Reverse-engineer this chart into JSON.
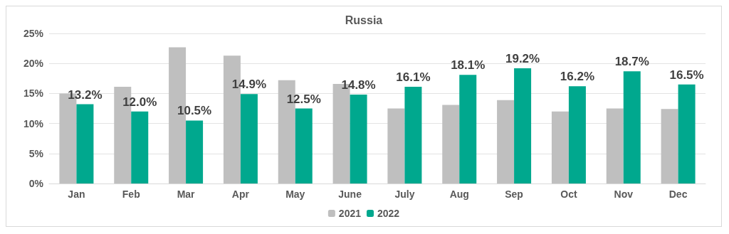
{
  "chart_data": {
    "type": "bar",
    "title": "Russia",
    "categories": [
      "Jan",
      "Feb",
      "Mar",
      "Apr",
      "May",
      "June",
      "July",
      "Aug",
      "Sep",
      "Oct",
      "Nov",
      "Dec"
    ],
    "series": [
      {
        "name": "2021",
        "color": "#bfbfbf",
        "values": [
          15.0,
          16.1,
          22.7,
          21.3,
          17.2,
          16.6,
          12.5,
          13.1,
          13.9,
          12.0,
          12.5,
          12.4
        ]
      },
      {
        "name": "2022",
        "color": "#00a88e",
        "values": [
          13.2,
          12.0,
          10.5,
          14.9,
          12.5,
          14.8,
          16.1,
          18.1,
          19.2,
          16.2,
          18.7,
          16.5
        ],
        "value_labels": [
          "13.2%",
          "12.0%",
          "10.5%",
          "14.9%",
          "12.5%",
          "14.8%",
          "16.1%",
          "18.1%",
          "19.2%",
          "16.2%",
          "18.7%",
          "16.5%"
        ]
      }
    ],
    "ylim": [
      0,
      25
    ],
    "yticks": [
      {
        "value": 0,
        "label": "0%"
      },
      {
        "value": 5,
        "label": "5%"
      },
      {
        "value": 10,
        "label": "10%"
      },
      {
        "value": 15,
        "label": "15%"
      },
      {
        "value": 20,
        "label": "20%"
      },
      {
        "value": 25,
        "label": "25%"
      }
    ],
    "grid": "y",
    "legend": "bottom"
  }
}
